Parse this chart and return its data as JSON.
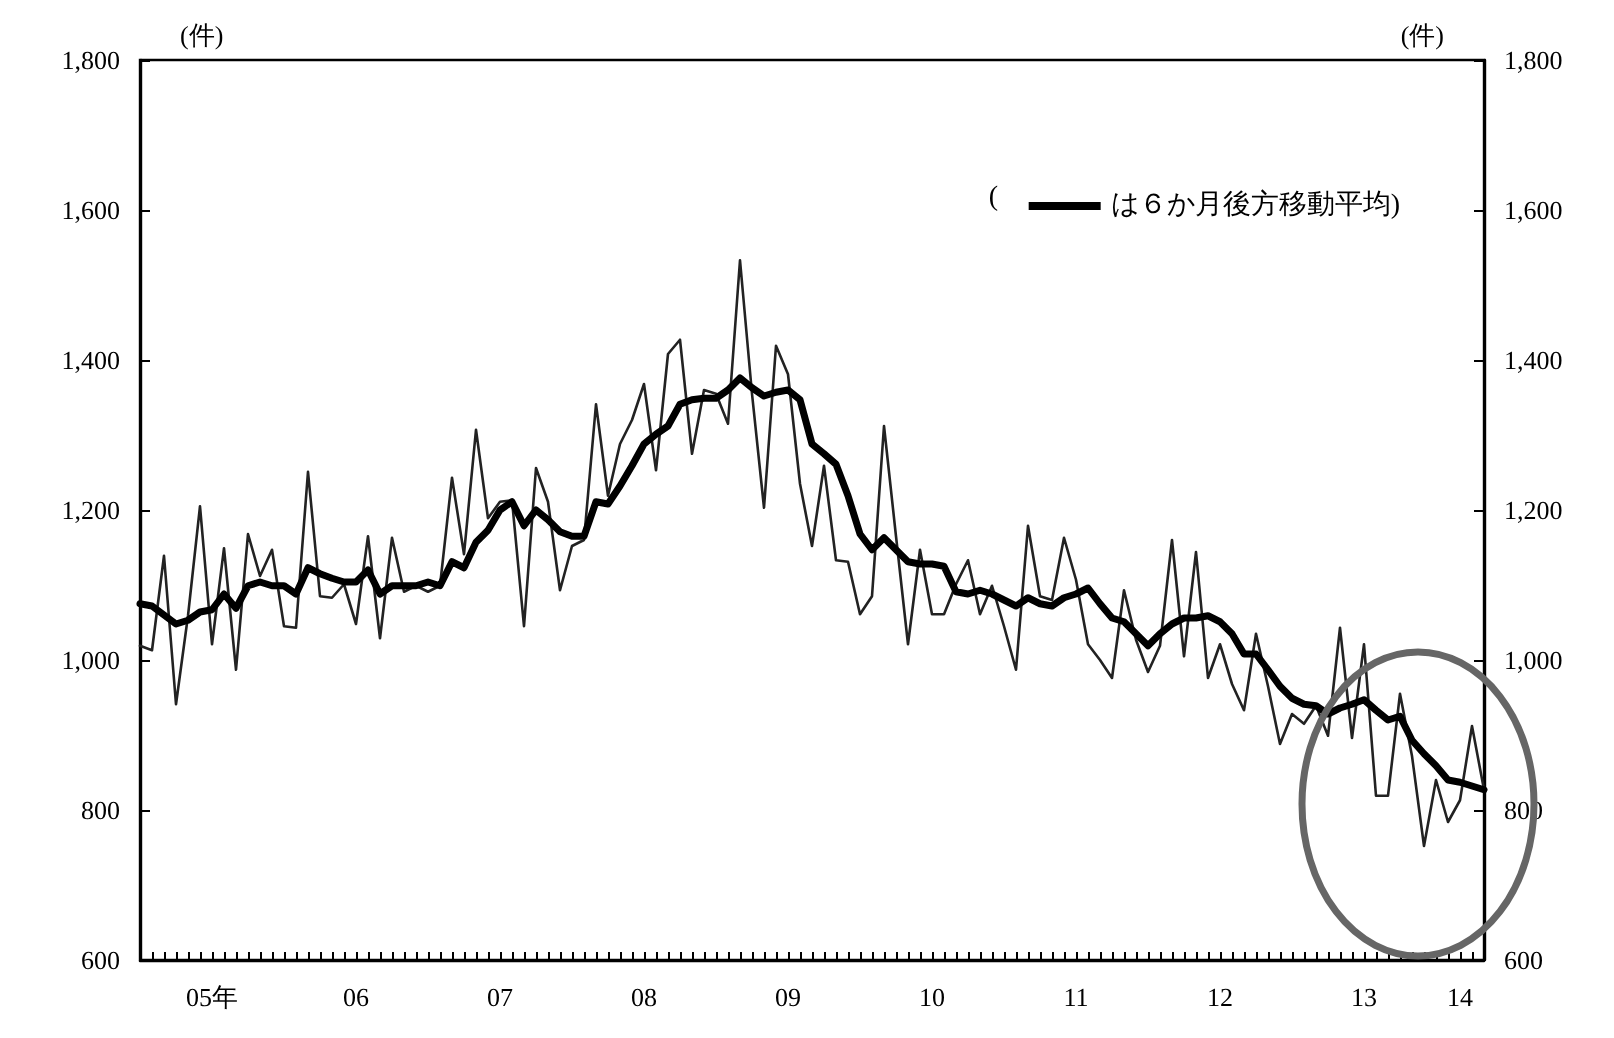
{
  "chart_data": {
    "type": "line",
    "ylabel": "(件)",
    "y2label": "(件)",
    "legend_title": "(",
    "legend": "top right",
    "marker": "none",
    "line_style": "solid",
    "grid": false,
    "categories": [
      null,
      null,
      null,
      null,
      null,
      null,
      "05年",
      null,
      null,
      null,
      null,
      null,
      null,
      null,
      null,
      null,
      null,
      null,
      "06",
      null,
      null,
      null,
      null,
      null,
      null,
      null,
      null,
      null,
      null,
      null,
      "07",
      null,
      null,
      null,
      null,
      null,
      null,
      null,
      null,
      null,
      null,
      null,
      "08",
      null,
      null,
      null,
      null,
      null,
      null,
      null,
      null,
      null,
      null,
      null,
      "09",
      null,
      null,
      null,
      null,
      null,
      null,
      null,
      null,
      null,
      null,
      null,
      "10",
      null,
      null,
      null,
      null,
      null,
      null,
      null,
      null,
      null,
      null,
      null,
      "11",
      null,
      null,
      null,
      null,
      null,
      null,
      null,
      null,
      null,
      null,
      null,
      "12",
      null,
      null,
      null,
      null,
      null,
      null,
      null,
      null,
      null,
      null,
      null,
      "13",
      null,
      null,
      null,
      null,
      null,
      null,
      null,
      "14",
      null,
      null
    ],
    "series": [
      {
        "color": "#222222",
        "values": [
          1019,
          1013,
          1139,
          941,
          1059,
          1205,
          1021,
          1149,
          987,
          1168,
          1112,
          1147,
          1045,
          1043,
          1251,
          1085,
          1083,
          1101,
          1048,
          1165,
          1029,
          1163,
          1091,
          1099,
          1091,
          1099,
          1243,
          1141,
          1307,
          1189,
          1211,
          1213,
          1045,
          1256,
          1211,
          1093,
          1152,
          1160,
          1341,
          1219,
          1288,
          1320,
          1368,
          1253,
          1408,
          1427,
          1275,
          1360,
          1355,
          1315,
          1533,
          1355,
          1203,
          1419,
          1381,
          1235,
          1152,
          1259,
          1133,
          1131,
          1061,
          1085,
          1312,
          1165,
          1021,
          1147,
          1061,
          1061,
          1101,
          1133,
          1061,
          1099,
          1045,
          987,
          1179,
          1085,
          1080,
          1163,
          1107,
          1021,
          1000,
          976,
          1093,
          1027,
          984,
          1019,
          1160,
          1005,
          1144,
          976,
          1021,
          968,
          933,
          1035,
          965,
          888,
          928,
          915,
          939,
          899,
          1043,
          896,
          1021,
          819,
          819,
          955,
          872,
          752,
          840,
          784,
          813,
          912,
          827
        ]
      },
      {
        "name": "は６か月後方移動平均)",
        "color": "#000000",
        "values": [
          1075,
          1072,
          1060,
          1048,
          1053,
          1064,
          1067,
          1088,
          1069,
          1099,
          1104,
          1099,
          1099,
          1088,
          1123,
          1115,
          1109,
          1104,
          1104,
          1120,
          1088,
          1099,
          1099,
          1099,
          1104,
          1099,
          1131,
          1123,
          1157,
          1173,
          1200,
          1211,
          1179,
          1200,
          1187,
          1171,
          1165,
          1165,
          1211,
          1208,
          1232,
          1259,
          1288,
          1301,
          1312,
          1341,
          1347,
          1349,
          1349,
          1360,
          1376,
          1363,
          1352,
          1357,
          1360,
          1347,
          1288,
          1275,
          1261,
          1219,
          1168,
          1147,
          1163,
          1147,
          1131,
          1128,
          1128,
          1125,
          1091,
          1088,
          1093,
          1088,
          1080,
          1072,
          1083,
          1075,
          1072,
          1083,
          1088,
          1096,
          1075,
          1056,
          1051,
          1035,
          1019,
          1035,
          1048,
          1056,
          1056,
          1059,
          1051,
          1035,
          1008,
          1008,
          987,
          965,
          949,
          941,
          939,
          928,
          936,
          941,
          947,
          933,
          920,
          925,
          893,
          875,
          859,
          840,
          837,
          832,
          827
        ]
      }
    ],
    "ylim": [
      600,
      1800
    ],
    "yticks": [
      {
        "value": 600,
        "label": "600"
      },
      {
        "value": 800,
        "label": "800"
      },
      {
        "value": 1000,
        "label": "1,000"
      },
      {
        "value": 1200,
        "label": "1,200"
      },
      {
        "value": 1400,
        "label": "1,400"
      },
      {
        "value": 1600,
        "label": "1,600"
      },
      {
        "value": 1800,
        "label": "1,800"
      }
    ],
    "y2lim": [
      600,
      1800
    ],
    "y2ticks": [
      {
        "value": 600,
        "label": "600"
      },
      {
        "value": 800,
        "label": "800"
      },
      {
        "value": 1000,
        "label": "1,000"
      },
      {
        "value": 1200,
        "label": "1,200"
      },
      {
        "value": 1400,
        "label": "1,400"
      },
      {
        "value": 1600,
        "label": "1,600"
      },
      {
        "value": 1800,
        "label": "1,800"
      }
    ]
  }
}
